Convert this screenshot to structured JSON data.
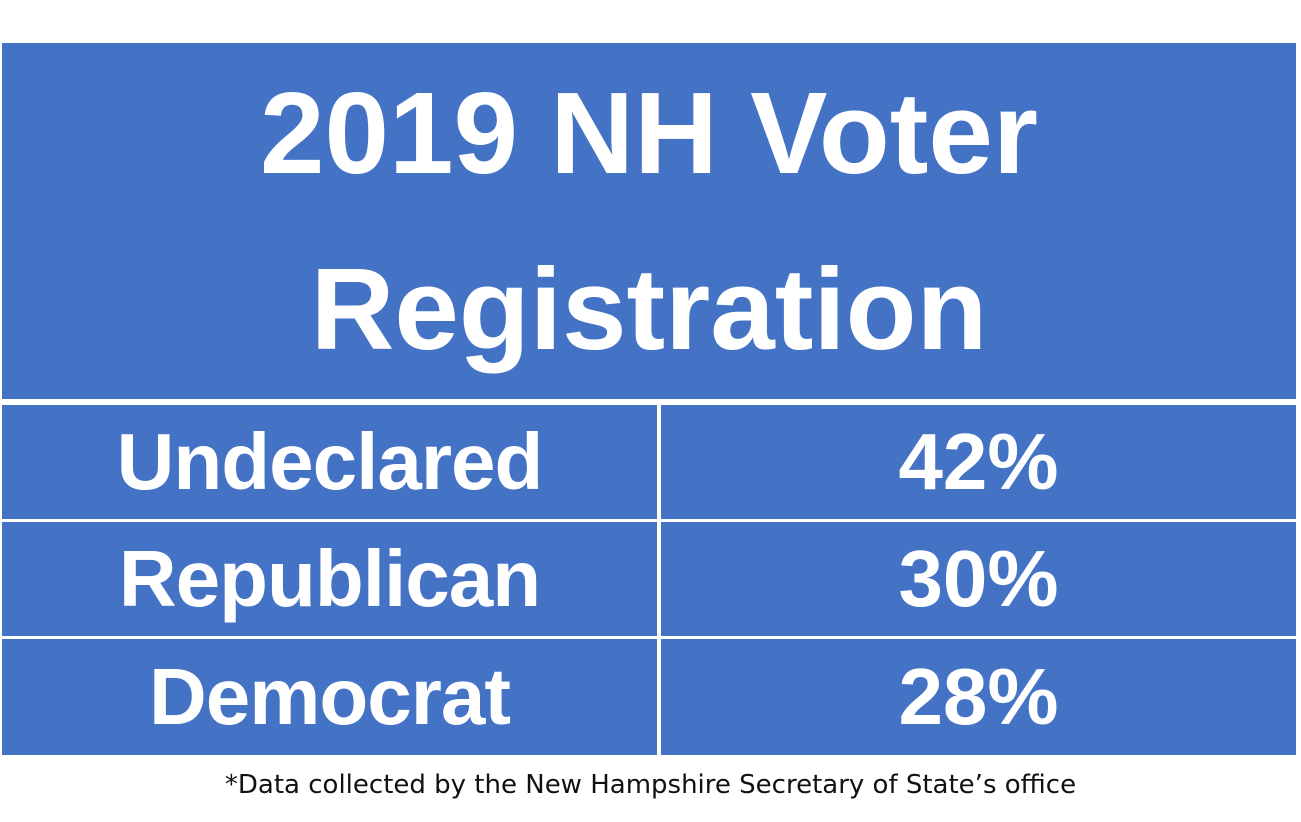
{
  "chart_data": {
    "type": "table",
    "title_lines": [
      "2019 NH Voter",
      "Registration"
    ],
    "rows": [
      {
        "label": "Undeclared",
        "value": "42%"
      },
      {
        "label": "Republican",
        "value": "30%"
      },
      {
        "label": "Democrat",
        "value": "28%"
      }
    ],
    "footnote": "*Data collected by the New Hampshire Secretary of State’s office",
    "colors": {
      "cell_background": "#4472C4",
      "text": "#FFFFFF",
      "grid": "#FFFFFF"
    }
  }
}
